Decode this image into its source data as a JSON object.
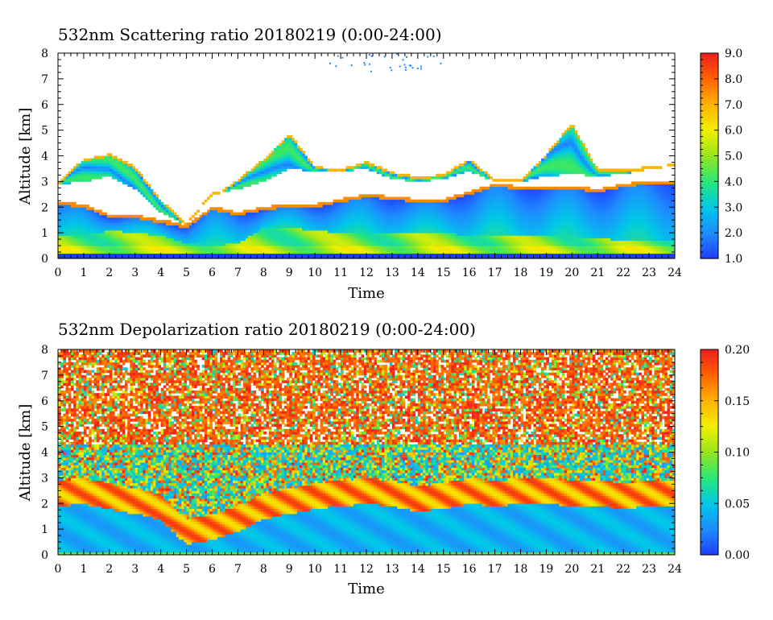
{
  "chart_data": [
    {
      "type": "heatmap",
      "title": "532nm Scattering ratio  20180219 (0:00-24:00)",
      "xlabel": "Time",
      "ylabel": "Altitude [km]",
      "xlim": [
        0,
        24
      ],
      "ylim": [
        0,
        8
      ],
      "x_ticks": [
        "0",
        "1",
        "2",
        "3",
        "4",
        "5",
        "6",
        "7",
        "8",
        "9",
        "10",
        "11",
        "12",
        "13",
        "14",
        "15",
        "16",
        "17",
        "18",
        "19",
        "20",
        "21",
        "22",
        "23",
        "24"
      ],
      "y_ticks": [
        "0",
        "1",
        "2",
        "3",
        "4",
        "5",
        "6",
        "7",
        "8"
      ],
      "colorbar": {
        "range": [
          1.0,
          9.0
        ],
        "tick_labels": [
          "1.0",
          "2.0",
          "3.0",
          "4.0",
          "5.0",
          "6.0",
          "7.0",
          "8.0",
          "9.0"
        ],
        "colormap": [
          "#1e3cff",
          "#1e8cff",
          "#00c8e6",
          "#28e678",
          "#96e61e",
          "#f0f000",
          "#ffb400",
          "#ff6400",
          "#f01e1e"
        ]
      },
      "layers": {
        "surface_top_km": [
          0.9,
          0.9,
          1.1,
          1.0,
          0.9,
          0.6,
          0.5,
          0.6,
          1.2,
          1.2,
          1.1,
          1.0,
          1.0,
          1.0,
          1.0,
          1.0,
          0.9,
          0.9,
          0.9,
          0.9,
          0.8,
          0.8,
          0.7,
          0.7,
          0.7
        ],
        "boundary_layer_top_km": [
          2.1,
          2.0,
          1.6,
          1.6,
          1.4,
          1.2,
          1.9,
          1.7,
          1.9,
          2.0,
          2.0,
          2.2,
          2.4,
          2.3,
          2.2,
          2.2,
          2.5,
          2.8,
          2.7,
          2.7,
          2.7,
          2.6,
          2.8,
          2.9,
          2.9
        ],
        "cloud_base_km": [
          2.9,
          3.0,
          3.2,
          2.7,
          1.8,
          1.3,
          2.5,
          2.7,
          3.0,
          3.5,
          3.4,
          3.4,
          3.5,
          3.1,
          3.0,
          3.1,
          3.4,
          3.0,
          3.0,
          3.2,
          3.3,
          3.2,
          3.3,
          3.5,
          3.6
        ],
        "cloud_top_km": [
          2.9,
          3.8,
          4.0,
          3.5,
          2.2,
          1.3,
          2.3,
          3.0,
          3.8,
          4.8,
          3.5,
          3.4,
          3.7,
          3.3,
          3.1,
          3.2,
          3.8,
          3.0,
          3.0,
          4.0,
          5.2,
          3.4,
          3.4,
          3.5,
          3.6
        ]
      }
    },
    {
      "type": "heatmap",
      "title": "532nm Depolarization ratio  20180219 (0:00-24:00)",
      "xlabel": "Time",
      "ylabel": "Altitude [km]",
      "xlim": [
        0,
        24
      ],
      "ylim": [
        0,
        8
      ],
      "x_ticks": [
        "0",
        "1",
        "2",
        "3",
        "4",
        "5",
        "6",
        "7",
        "8",
        "9",
        "10",
        "11",
        "12",
        "13",
        "14",
        "15",
        "16",
        "17",
        "18",
        "19",
        "20",
        "21",
        "22",
        "23",
        "24"
      ],
      "y_ticks": [
        "0",
        "1",
        "2",
        "3",
        "4",
        "5",
        "6",
        "7",
        "8"
      ],
      "colorbar": {
        "range": [
          0.0,
          0.2
        ],
        "tick_labels": [
          "0.00",
          "0.05",
          "0.10",
          "0.15",
          "0.20"
        ],
        "colormap": [
          "#1e3cff",
          "#1e8cff",
          "#00c8e6",
          "#28e678",
          "#96e61e",
          "#f0f000",
          "#ffb400",
          "#ff6400",
          "#f01e1e"
        ]
      },
      "layers": {
        "aerosol_depol_high_band_km": [
          2.5,
          2.6,
          2.4,
          2.2,
          2.0,
          1.0,
          1.2,
          1.5,
          2.0,
          2.2,
          2.4,
          2.5,
          2.6,
          2.5,
          2.3,
          2.4,
          2.6,
          2.5,
          2.6,
          2.6,
          2.5,
          2.5,
          2.4,
          2.5,
          2.5
        ]
      }
    }
  ]
}
